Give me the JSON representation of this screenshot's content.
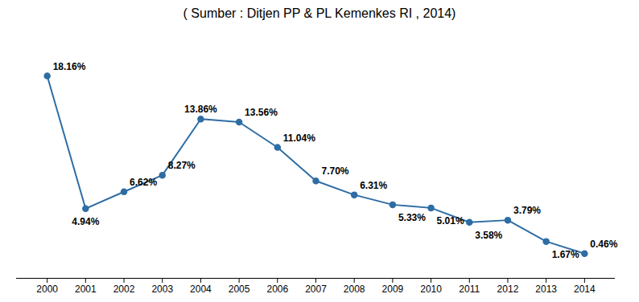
{
  "chart_data": {
    "type": "line",
    "title": "( Sumber : Ditjen PP & PL Kemenkes RI , 2014)",
    "x": [
      2000,
      2001,
      2002,
      2003,
      2004,
      2005,
      2006,
      2007,
      2008,
      2009,
      2010,
      2011,
      2012,
      2013,
      2014
    ],
    "values": [
      18.16,
      4.94,
      6.62,
      8.27,
      13.86,
      13.56,
      11.04,
      7.7,
      6.31,
      5.33,
      5.01,
      3.58,
      3.79,
      1.67,
      0.46
    ],
    "value_labels": [
      "18.16%",
      "4.94%",
      "6.62%",
      "8.27%",
      "13.86%",
      "13.56%",
      "11.04%",
      "7.70%",
      "6.31%",
      "5.33%",
      "5.01%",
      "3.58%",
      "3.79%",
      "1.67%",
      "0.46%"
    ],
    "color": "#2E6DA4",
    "marker": "circle",
    "xlim": [
      1999.2,
      2014.8
    ],
    "xticks": [
      2000,
      2001,
      2002,
      2003,
      2004,
      2005,
      2006,
      2007,
      2008,
      2009,
      2010,
      2011,
      2012,
      2013,
      2014
    ],
    "ylim": [
      -2,
      22
    ],
    "data_labels": true,
    "tick_labels": "x",
    "grid": false
  }
}
